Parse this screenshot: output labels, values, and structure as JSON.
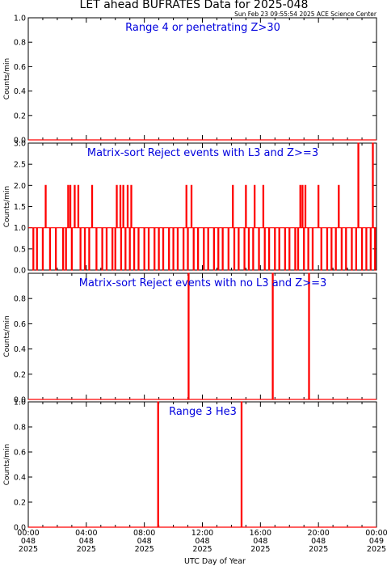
{
  "title": "LET ahead BUFRATES Data for 2025-048",
  "timestamp": "Sun Feb 23 09:55:54 2025 ACE Science Center",
  "xlabel": "UTC Day of Year",
  "colors": {
    "series": "#ff0000",
    "panel_title": "#0000dd",
    "axes": "#000000"
  },
  "chart_data": [
    {
      "type": "line",
      "title": "Range 4 or  penetrating Z>30",
      "ylabel": "Counts/min",
      "ylim": [
        0,
        1.0
      ],
      "yticks": [
        "0.0",
        "0.2",
        "0.4",
        "0.6",
        "0.8",
        "1.0"
      ],
      "xlim_hours": [
        0,
        24
      ],
      "baseline": 0,
      "spikes": []
    },
    {
      "type": "line",
      "title": "Matrix-sort Reject events with L3 and Z>=3",
      "ylabel": "Counts/min",
      "ylim": [
        0,
        3.0
      ],
      "yticks": [
        "0.0",
        "0.5",
        "1.0",
        "1.5",
        "2.0",
        "2.5",
        "3.0"
      ],
      "xlim_hours": [
        0,
        24
      ],
      "baseline": 1,
      "spikes": [
        {
          "t": 1.2,
          "v": 2
        },
        {
          "t": 2.75,
          "v": 2
        },
        {
          "t": 2.9,
          "v": 2
        },
        {
          "t": 3.2,
          "v": 2
        },
        {
          "t": 3.45,
          "v": 2
        },
        {
          "t": 4.4,
          "v": 2
        },
        {
          "t": 6.1,
          "v": 2
        },
        {
          "t": 6.35,
          "v": 2
        },
        {
          "t": 6.55,
          "v": 2
        },
        {
          "t": 6.85,
          "v": 2
        },
        {
          "t": 7.1,
          "v": 2
        },
        {
          "t": 10.9,
          "v": 2
        },
        {
          "t": 11.25,
          "v": 2
        },
        {
          "t": 14.1,
          "v": 2
        },
        {
          "t": 15.0,
          "v": 2
        },
        {
          "t": 15.6,
          "v": 2
        },
        {
          "t": 16.2,
          "v": 2
        },
        {
          "t": 18.75,
          "v": 2
        },
        {
          "t": 18.9,
          "v": 2
        },
        {
          "t": 19.1,
          "v": 2
        },
        {
          "t": 20.0,
          "v": 2
        },
        {
          "t": 21.4,
          "v": 2
        },
        {
          "t": 22.75,
          "v": 3
        },
        {
          "t": 23.75,
          "v": 3
        }
      ],
      "dropouts": [
        0.35,
        0.6,
        1.0,
        1.5,
        1.9,
        2.4,
        2.6,
        3.0,
        3.6,
        3.9,
        4.2,
        4.7,
        5.1,
        5.4,
        5.8,
        6.0,
        6.4,
        6.7,
        7.0,
        7.3,
        7.6,
        8.0,
        8.3,
        8.7,
        9.0,
        9.3,
        9.7,
        10.0,
        10.3,
        10.7,
        11.0,
        11.4,
        11.7,
        12.1,
        12.4,
        12.8,
        13.1,
        13.4,
        13.8,
        14.2,
        14.5,
        14.9,
        15.2,
        15.5,
        15.9,
        16.3,
        16.6,
        17.0,
        17.3,
        17.7,
        18.0,
        18.4,
        18.6,
        19.0,
        19.3,
        19.6,
        20.2,
        20.6,
        20.9,
        21.2,
        21.6,
        21.9,
        22.3,
        22.6,
        23.0,
        23.3,
        23.6,
        23.9
      ]
    },
    {
      "type": "line",
      "title": "Matrix-sort Reject events with no L3 and Z>=3",
      "ylabel": "Counts/min",
      "ylim": [
        0,
        1.0
      ],
      "yticks": [
        "0.0",
        "0.2",
        "0.4",
        "0.6",
        "0.8"
      ],
      "xlim_hours": [
        0,
        24
      ],
      "baseline": 0,
      "spikes": [
        {
          "t": 11.05,
          "v": 1
        },
        {
          "t": 16.85,
          "v": 1
        },
        {
          "t": 19.35,
          "v": 1
        }
      ]
    },
    {
      "type": "line",
      "title": "Range 3 He3",
      "ylabel": "Counts/min",
      "ylim": [
        0,
        1.0
      ],
      "yticks": [
        "0.0",
        "0.2",
        "0.4",
        "0.6",
        "0.8",
        "1.0"
      ],
      "xlim_hours": [
        0,
        24
      ],
      "baseline": 0,
      "spikes": [
        {
          "t": 8.95,
          "v": 1
        },
        {
          "t": 14.7,
          "v": 1
        }
      ]
    }
  ],
  "x_ticks": [
    {
      "time": "00:00",
      "doy": "048",
      "year": "2025"
    },
    {
      "time": "04:00",
      "doy": "048",
      "year": "2025"
    },
    {
      "time": "08:00",
      "doy": "048",
      "year": "2025"
    },
    {
      "time": "12:00",
      "doy": "048",
      "year": "2025"
    },
    {
      "time": "16:00",
      "doy": "048",
      "year": "2025"
    },
    {
      "time": "20:00",
      "doy": "048",
      "year": "2025"
    },
    {
      "time": "00:00",
      "doy": "049",
      "year": "2025"
    }
  ]
}
